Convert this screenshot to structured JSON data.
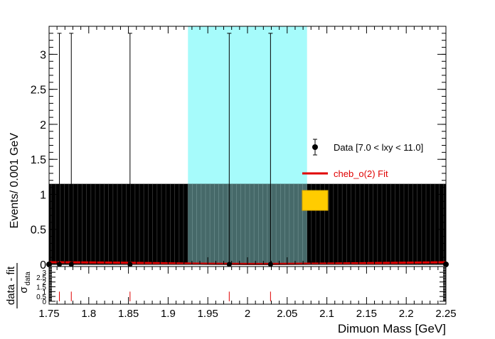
{
  "chart_data": {
    "type": "scatter",
    "xlabel": "Dimuon Mass [GeV]",
    "ylabel": "Events/ 0.001 GeV",
    "xlim": [
      1.75,
      2.25
    ],
    "ylim": [
      0,
      3.4
    ],
    "x_ticks": [
      "1.75",
      "1.8",
      "1.85",
      "1.9",
      "1.95",
      "2",
      "2.05",
      "2.1",
      "2.15",
      "2.2",
      "2.25"
    ],
    "y_ticks": [
      "0",
      "0.5",
      "1",
      "1.5",
      "2",
      "2.5",
      "3"
    ],
    "signal_window": {
      "x_min": 1.925,
      "x_max": 2.075,
      "color": "#a6fbfb"
    },
    "band": {
      "y_max": 1.15,
      "color": "#000000"
    },
    "legend": {
      "placement": "right",
      "entries": [
        {
          "label": "Data [7.0 < lxy < 11.0]",
          "kind": "marker",
          "color": "#000000"
        },
        {
          "label": "cheb_o(2) Fit",
          "kind": "line",
          "color": "#e00000"
        },
        {
          "label": "",
          "kind": "box",
          "color": "#ffcc00"
        }
      ]
    },
    "series": [
      {
        "name": "Data [7.0 < lxy < 11.0]",
        "points": [
          {
            "x": 1.763,
            "y": 0,
            "err_up": 3.3
          },
          {
            "x": 1.778,
            "y": 0,
            "err_up": 3.3
          },
          {
            "x": 1.852,
            "y": 0,
            "err_up": 3.3
          },
          {
            "x": 1.977,
            "y": 0,
            "err_up": 3.3
          },
          {
            "x": 2.029,
            "y": 0,
            "err_up": 3.3
          }
        ]
      },
      {
        "name": "cheb_o(2) Fit",
        "x": [
          1.75,
          1.8,
          1.85,
          1.9,
          1.95,
          2.0,
          2.05,
          2.1,
          2.15,
          2.2,
          2.25
        ],
        "values": [
          0.03,
          0.028,
          0.022,
          0.015,
          0.009,
          0.006,
          0.007,
          0.011,
          0.017,
          0.024,
          0.03
        ]
      }
    ],
    "pull_panel": {
      "ylabel_num": "data - fit",
      "ylabel_den": "σ",
      "ylabel_sub": "data",
      "y_ticks": [
        "0",
        "0.5",
        "1",
        "1.5",
        "2",
        "2.5",
        "3"
      ],
      "ylim": [
        -0.3,
        3.6
      ],
      "pulls": [
        {
          "x": 1.763,
          "y": 1.0
        },
        {
          "x": 1.778,
          "y": 1.0
        },
        {
          "x": 1.852,
          "y": 1.0
        },
        {
          "x": 1.977,
          "y": 1.0
        },
        {
          "x": 2.029,
          "y": 1.0
        }
      ]
    }
  }
}
